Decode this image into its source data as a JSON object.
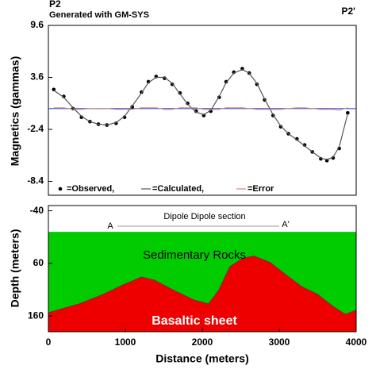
{
  "chart_data": [
    {
      "type": "line",
      "id_label": "P2",
      "subtitle": "Generated with GM-SYS",
      "end_label": "P2'",
      "y_label": "Magnetics (gammas)",
      "xlim": [
        0,
        4000
      ],
      "ylim": [
        -10,
        9.6
      ],
      "yticks": [
        9.6,
        3.6,
        -2.4,
        -8.4
      ],
      "reference_line": {
        "value": 0,
        "color": "#3a4fd0"
      },
      "x": [
        70,
        200,
        320,
        430,
        540,
        650,
        760,
        880,
        990,
        1090,
        1210,
        1300,
        1400,
        1510,
        1610,
        1710,
        1810,
        1920,
        2020,
        2110,
        2220,
        2310,
        2410,
        2520,
        2610,
        2710,
        2810,
        2920,
        3020,
        3120,
        3230,
        3330,
        3430,
        3540,
        3620,
        3700,
        3780,
        3890
      ],
      "series": [
        {
          "name": "=Observed,",
          "mode": "markers",
          "color": "#000000",
          "values": [
            2.2,
            1.4,
            0.0,
            -1.0,
            -1.5,
            -1.8,
            -1.9,
            -1.7,
            -1.0,
            0.2,
            1.9,
            3.1,
            3.7,
            3.5,
            2.8,
            1.8,
            0.6,
            -0.3,
            -0.8,
            -0.3,
            1.3,
            3.1,
            4.2,
            4.6,
            4.1,
            2.8,
            1.0,
            -0.8,
            -2.1,
            -2.9,
            -3.5,
            -4.2,
            -5.0,
            -5.8,
            -6.0,
            -5.7,
            -4.6,
            -0.5
          ]
        },
        {
          "name": "=Calculated,",
          "mode": "line",
          "color": "#555555",
          "values": [
            2.1,
            1.3,
            0.1,
            -0.9,
            -1.5,
            -1.8,
            -1.9,
            -1.6,
            -0.9,
            0.3,
            1.8,
            3.0,
            3.6,
            3.6,
            2.9,
            1.7,
            0.5,
            -0.4,
            -0.7,
            -0.2,
            1.4,
            3.0,
            4.1,
            4.5,
            4.1,
            2.9,
            1.1,
            -0.7,
            -2.0,
            -2.9,
            -3.6,
            -4.3,
            -5.0,
            -5.7,
            -5.9,
            -5.6,
            -4.4,
            -0.6
          ]
        },
        {
          "name": "=Error",
          "mode": "line",
          "color": "#d08a7a",
          "values": [
            0.1,
            0.1,
            -0.1,
            -0.1,
            0,
            0,
            0,
            -0.1,
            -0.1,
            -0.1,
            0.1,
            0.1,
            0.1,
            -0.1,
            -0.1,
            0.1,
            0.1,
            0.1,
            -0.1,
            -0.1,
            -0.1,
            0.1,
            0.1,
            0.1,
            0,
            -0.1,
            -0.1,
            -0.1,
            -0.1,
            0,
            0.1,
            0.1,
            0,
            -0.1,
            -0.1,
            -0.1,
            -0.2,
            0.1
          ]
        }
      ]
    },
    {
      "type": "section",
      "title": "Dipole Dipole section",
      "start_label": "A",
      "end_label": "A'",
      "x_label": "Distance (meters)",
      "y_label": "Depth (meters)",
      "xlim": [
        0,
        4000
      ],
      "xticks": [
        0,
        1000,
        2000,
        3000,
        4000
      ],
      "ylim": [
        -50,
        190
      ],
      "yticks": [
        -40,
        60,
        160
      ],
      "layers": [
        {
          "name": "Sedimentary Rocks",
          "color": "#00cc00",
          "top": 0
        },
        {
          "name": "Basaltic sheet",
          "color": "#ee0000",
          "x": [
            0,
            400,
            710,
            970,
            1210,
            1380,
            1640,
            1900,
            2080,
            2210,
            2360,
            2520,
            2670,
            2880,
            3080,
            3290,
            3500,
            3700,
            3860,
            4000
          ],
          "depth": [
            154,
            137,
            119,
            101,
            86,
            92,
            112,
            130,
            137,
            112,
            66,
            51,
            46,
            58,
            81,
            104,
            119,
            142,
            157,
            149
          ]
        }
      ]
    }
  ]
}
